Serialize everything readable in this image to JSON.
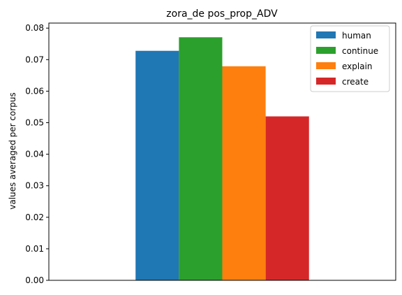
{
  "chart_data": {
    "type": "bar",
    "title": "zora_de pos_prop_ADV",
    "xlabel": "",
    "ylabel": "values averaged per corpus",
    "ylim": [
      0,
      0.0816
    ],
    "yticks": [
      "0.00",
      "0.01",
      "0.02",
      "0.03",
      "0.04",
      "0.05",
      "0.06",
      "0.07",
      "0.08"
    ],
    "grid": false,
    "legend_position": "top-right",
    "categories": [
      ""
    ],
    "series": [
      {
        "name": "human",
        "values": [
          0.0728
        ],
        "color": "#1f77b4"
      },
      {
        "name": "continue",
        "values": [
          0.0771
        ],
        "color": "#2ca02c"
      },
      {
        "name": "explain",
        "values": [
          0.0679
        ],
        "color": "#ff7f0e"
      },
      {
        "name": "create",
        "values": [
          0.052
        ],
        "color": "#d62728"
      }
    ]
  }
}
